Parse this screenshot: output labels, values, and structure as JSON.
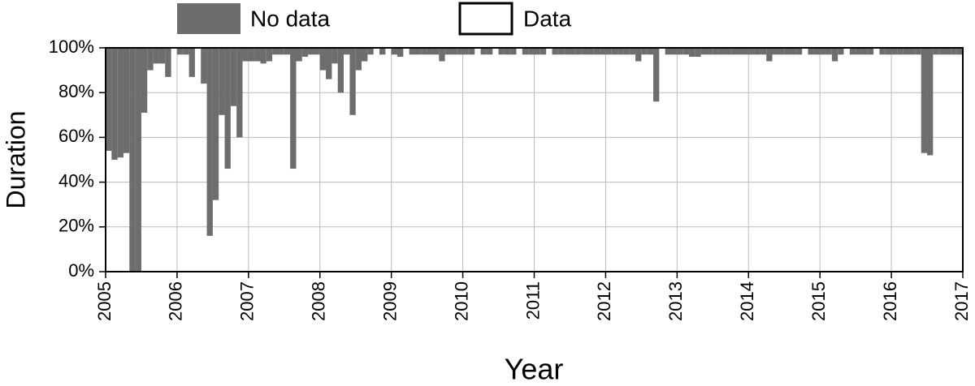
{
  "chart_data": {
    "type": "stacked-bar",
    "ylabel": "Duration",
    "xlabel": "Year",
    "x": [
      2005.0,
      2005.083,
      2005.167,
      2005.25,
      2005.333,
      2005.417,
      2005.5,
      2005.583,
      2005.667,
      2005.75,
      2005.833,
      2005.917,
      2006.0,
      2006.083,
      2006.167,
      2006.25,
      2006.333,
      2006.417,
      2006.5,
      2006.583,
      2006.667,
      2006.75,
      2006.833,
      2006.917,
      2007.0,
      2007.083,
      2007.167,
      2007.25,
      2007.333,
      2007.417,
      2007.5,
      2007.583,
      2007.667,
      2007.75,
      2007.833,
      2007.917,
      2008.0,
      2008.083,
      2008.167,
      2008.25,
      2008.333,
      2008.417,
      2008.5,
      2008.583,
      2008.667,
      2008.75,
      2008.833,
      2008.917,
      2009.0,
      2009.083,
      2009.167,
      2009.25,
      2009.333,
      2009.417,
      2009.5,
      2009.583,
      2009.667,
      2009.75,
      2009.833,
      2009.917,
      2010.0,
      2010.083,
      2010.167,
      2010.25,
      2010.333,
      2010.417,
      2010.5,
      2010.583,
      2010.667,
      2010.75,
      2010.833,
      2010.917,
      2011.0,
      2011.083,
      2011.167,
      2011.25,
      2011.333,
      2011.417,
      2011.5,
      2011.583,
      2011.667,
      2011.75,
      2011.833,
      2011.917,
      2012.0,
      2012.083,
      2012.167,
      2012.25,
      2012.333,
      2012.417,
      2012.5,
      2012.583,
      2012.667,
      2012.75,
      2012.833,
      2012.917,
      2013.0,
      2013.083,
      2013.167,
      2013.25,
      2013.333,
      2013.417,
      2013.5,
      2013.583,
      2013.667,
      2013.75,
      2013.833,
      2013.917,
      2014.0,
      2014.083,
      2014.167,
      2014.25,
      2014.333,
      2014.417,
      2014.5,
      2014.583,
      2014.667,
      2014.75,
      2014.833,
      2014.917,
      2015.0,
      2015.083,
      2015.167,
      2015.25,
      2015.333,
      2015.417,
      2015.5,
      2015.583,
      2015.667,
      2015.75,
      2015.833,
      2015.917,
      2016.0,
      2016.083,
      2016.167,
      2016.25,
      2016.333,
      2016.417,
      2016.5,
      2016.583,
      2016.667,
      2016.75,
      2016.833,
      2016.917
    ],
    "series": [
      {
        "name": "Data",
        "color": "#ffffff",
        "values": [
          54,
          50,
          51,
          53,
          0,
          0,
          71,
          90,
          93,
          93,
          87,
          100,
          97,
          97,
          87,
          100,
          84,
          16,
          32,
          70,
          46,
          74,
          60,
          94,
          94,
          94,
          93,
          94,
          97,
          97,
          97,
          46,
          94,
          96,
          97,
          97,
          90,
          86,
          93,
          80,
          97,
          70,
          90,
          94,
          97,
          100,
          97,
          100,
          97,
          96,
          100,
          97,
          97,
          97,
          97,
          97,
          94,
          97,
          97,
          97,
          97,
          97,
          100,
          97,
          97,
          100,
          97,
          97,
          97,
          100,
          97,
          97,
          97,
          97,
          100,
          97,
          97,
          97,
          97,
          97,
          97,
          97,
          97,
          97,
          97,
          97,
          97,
          97,
          97,
          94,
          97,
          97,
          76,
          100,
          97,
          97,
          97,
          97,
          96,
          96,
          97,
          97,
          97,
          97,
          97,
          97,
          97,
          97,
          97,
          97,
          97,
          94,
          97,
          97,
          97,
          97,
          97,
          100,
          97,
          97,
          97,
          97,
          94,
          97,
          100,
          97,
          97,
          97,
          97,
          100,
          97,
          97,
          97,
          97,
          97,
          97,
          97,
          53,
          52,
          97,
          97,
          97,
          97,
          97
        ]
      },
      {
        "name": "No data",
        "color": "#6d6d6d",
        "values": [
          46,
          50,
          49,
          47,
          100,
          100,
          29,
          10,
          7,
          7,
          13,
          0,
          3,
          3,
          13,
          0,
          16,
          84,
          68,
          30,
          54,
          26,
          40,
          6,
          6,
          6,
          7,
          6,
          3,
          3,
          3,
          54,
          6,
          4,
          3,
          3,
          10,
          14,
          7,
          20,
          3,
          30,
          10,
          6,
          3,
          0,
          3,
          0,
          3,
          4,
          0,
          3,
          3,
          3,
          3,
          3,
          6,
          3,
          3,
          3,
          3,
          3,
          0,
          3,
          3,
          0,
          3,
          3,
          3,
          0,
          3,
          3,
          3,
          3,
          0,
          3,
          3,
          3,
          3,
          3,
          3,
          3,
          3,
          3,
          3,
          3,
          3,
          3,
          3,
          6,
          3,
          3,
          24,
          0,
          3,
          3,
          3,
          3,
          4,
          4,
          3,
          3,
          3,
          3,
          3,
          3,
          3,
          3,
          3,
          3,
          3,
          6,
          3,
          3,
          3,
          3,
          3,
          0,
          3,
          3,
          3,
          3,
          6,
          3,
          0,
          3,
          3,
          3,
          3,
          0,
          3,
          3,
          3,
          3,
          3,
          3,
          3,
          47,
          48,
          3,
          3,
          3,
          3,
          3
        ]
      }
    ],
    "xlim": [
      2005,
      2017
    ],
    "xticks": [
      2005,
      2006,
      2007,
      2008,
      2009,
      2010,
      2011,
      2012,
      2013,
      2014,
      2015,
      2016,
      2017
    ],
    "ylim": [
      0,
      100
    ],
    "yticks": [
      {
        "value": 0,
        "label": "0%"
      },
      {
        "value": 20,
        "label": "20%"
      },
      {
        "value": 40,
        "label": "40%"
      },
      {
        "value": 60,
        "label": "60%"
      },
      {
        "value": 80,
        "label": "80%"
      },
      {
        "value": 100,
        "label": "100%"
      }
    ],
    "grid": true,
    "legend": "top"
  }
}
